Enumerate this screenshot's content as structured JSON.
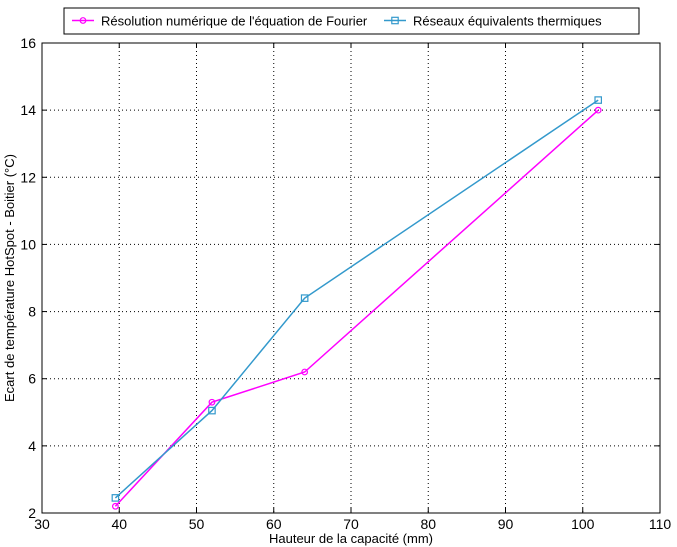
{
  "chart_data": {
    "type": "line",
    "xlabel": "Hauteur de la capacité (mm)",
    "ylabel": "Ecart de température HotSpot - Boitier (°C)",
    "xlim": [
      30,
      110
    ],
    "ylim": [
      2,
      16
    ],
    "xticks": [
      30,
      40,
      50,
      60,
      70,
      80,
      90,
      100,
      110
    ],
    "yticks": [
      2,
      4,
      6,
      8,
      10,
      12,
      14,
      16
    ],
    "grid": true,
    "legend_position": "top",
    "series": [
      {
        "name": "Résolution numérique de l'équation de Fourier",
        "color": "#ff00ff",
        "marker": "circle",
        "x": [
          39.5,
          52,
          64,
          102
        ],
        "y": [
          2.2,
          5.3,
          6.2,
          14.0
        ]
      },
      {
        "name": "Réseaux équivalents thermiques",
        "color": "#3399cc",
        "marker": "square",
        "x": [
          39.5,
          52,
          64,
          102
        ],
        "y": [
          2.45,
          5.05,
          8.4,
          14.3
        ]
      }
    ]
  }
}
